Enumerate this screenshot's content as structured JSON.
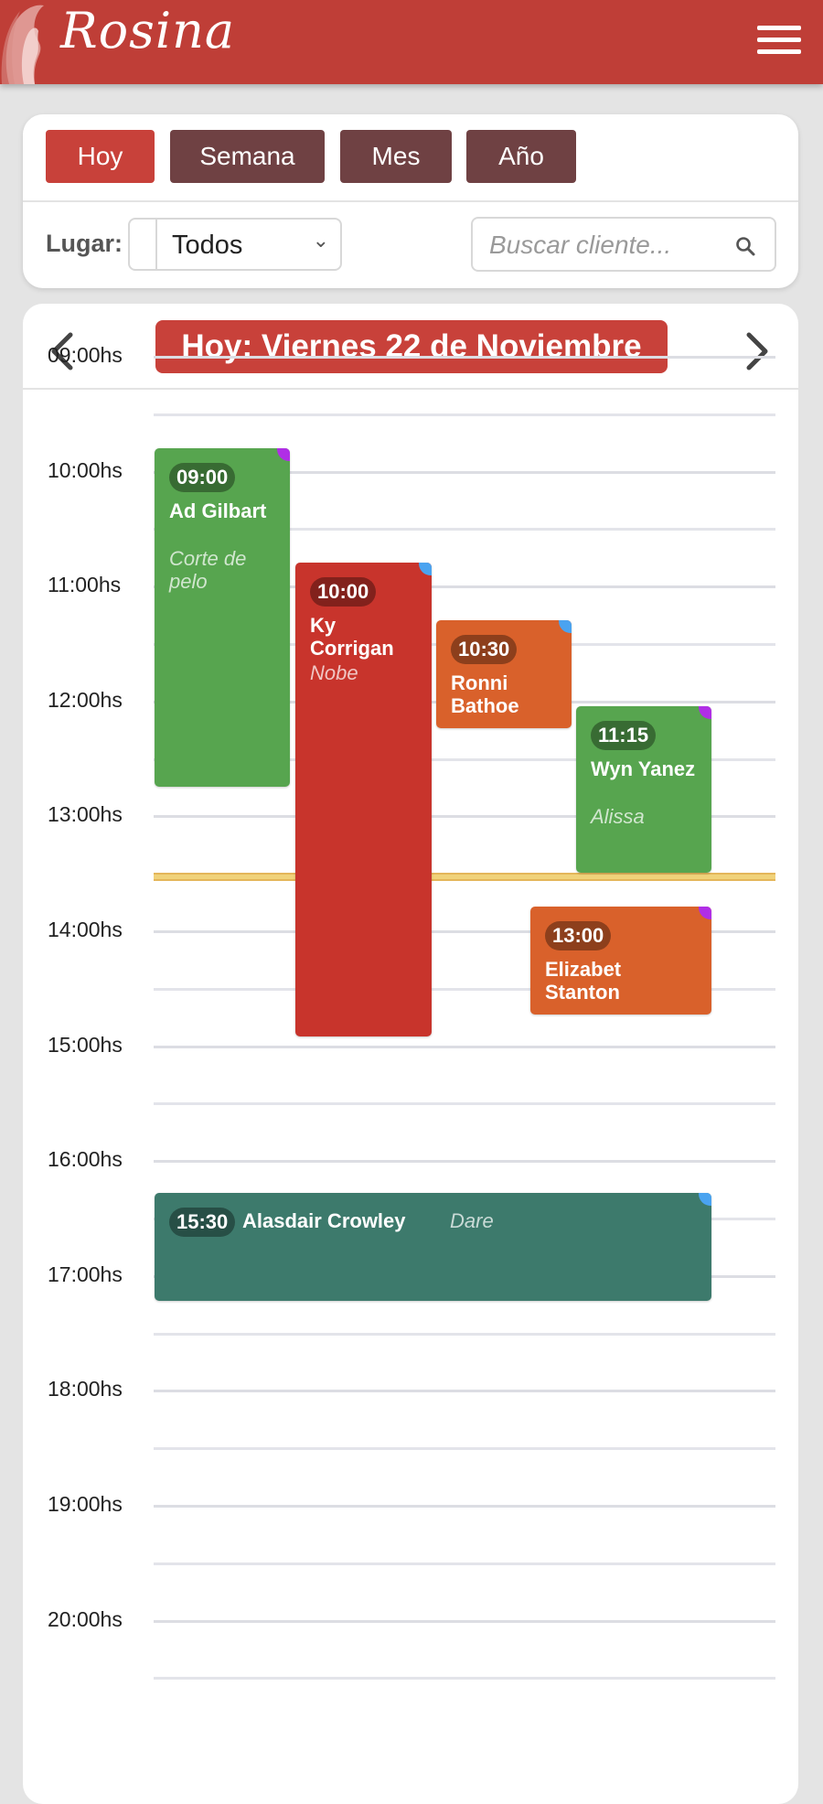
{
  "header": {
    "brand": "Rosina",
    "menu_icon": "hamburger-menu-icon"
  },
  "filters": {
    "view_buttons": [
      "Hoy",
      "Semana",
      "Mes",
      "Año"
    ],
    "active_view": "Hoy",
    "lugar_label": "Lugar:",
    "lugar_value": "Todos",
    "search_placeholder": "Buscar cliente..."
  },
  "calendar": {
    "date_label": "Hoy: Viernes 22 de Noviembre",
    "hours": [
      "09:00hs",
      "10:00hs",
      "11:00hs",
      "12:00hs",
      "13:00hs",
      "14:00hs",
      "15:00hs",
      "16:00hs",
      "17:00hs",
      "18:00hs",
      "19:00hs",
      "20:00hs"
    ],
    "events": [
      {
        "time": "09:00",
        "name": "Ad Gilbart",
        "service": "Corte de pelo",
        "color": "#57a54f",
        "dot": "#b02ee6"
      },
      {
        "time": "10:00",
        "name": "Ky Corrigan",
        "service": "Nobe",
        "color": "#c8342c",
        "dot": "#4aa3f0"
      },
      {
        "time": "10:30",
        "name": "Ronni Bathoe",
        "service": "",
        "color": "#d9612b",
        "dot": "#4aa3f0"
      },
      {
        "time": "11:15",
        "name": "Wyn Yanez",
        "service": "Alissa",
        "color": "#57a54f",
        "dot": "#b02ee6"
      },
      {
        "time": "13:00",
        "name": "Elizabet Stanton",
        "service": "",
        "color": "#d9612b",
        "dot": "#b02ee6"
      },
      {
        "time": "15:30",
        "name": "Alasdair Crowley",
        "service": "Dare",
        "color": "#3d7a6c",
        "dot": "#4aa3f0"
      }
    ]
  }
}
